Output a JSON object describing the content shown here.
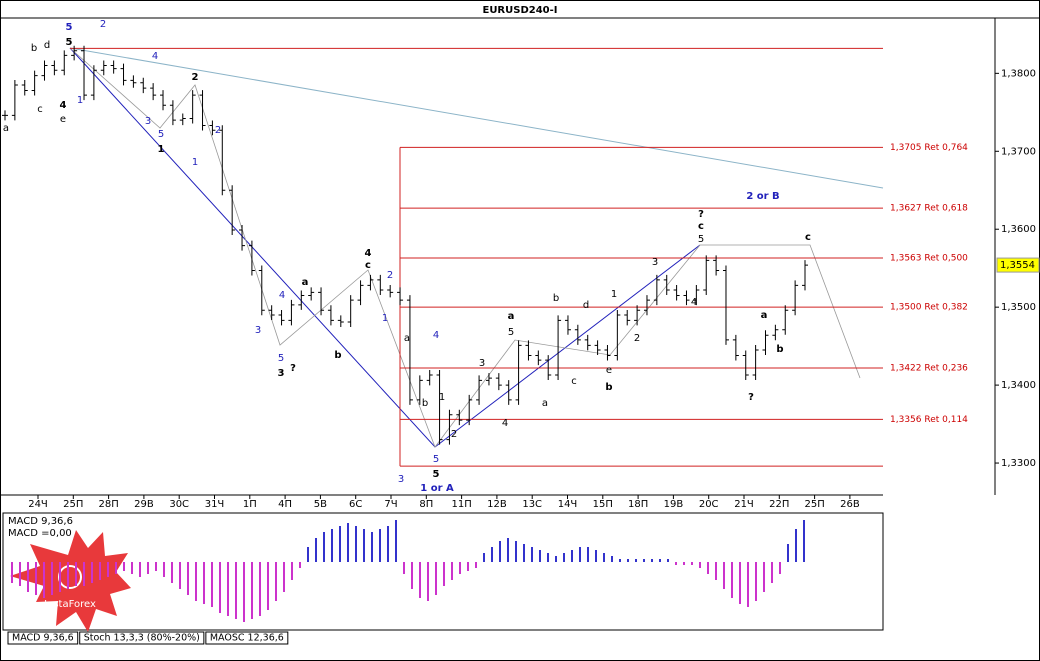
{
  "chart_data": {
    "type": "ohlc",
    "title": "EURUSD240-I",
    "ylim": [
      1.3259,
      1.3871
    ],
    "yticks": [
      {
        "value": 1.38,
        "label": "1,3800"
      },
      {
        "value": 1.37,
        "label": "1,3700"
      },
      {
        "value": 1.36,
        "label": "1,3600"
      },
      {
        "value": 1.35,
        "label": "1,3500"
      },
      {
        "value": 1.34,
        "label": "1,3400"
      },
      {
        "value": 1.33,
        "label": "1,3300"
      }
    ],
    "current_price": {
      "value": 1.3554,
      "label": "1,3554"
    },
    "levels": [
      {
        "value": 1.3705,
        "label": "1,3705 Ret 0,764"
      },
      {
        "value": 1.3627,
        "label": "1,3627 Ret 0,618"
      },
      {
        "value": 1.3563,
        "label": "1,3563 Ret 0,500"
      },
      {
        "value": 1.35,
        "label": "1,3500 Ret 0,382"
      },
      {
        "value": 1.3422,
        "label": "1,3422 Ret 0,236"
      },
      {
        "value": 1.3356,
        "label": "1,3356 Ret 0,114"
      }
    ],
    "range_lines": [
      1.3832,
      1.3296
    ],
    "color": "#000000",
    "close": [
      1.3746,
      1.3785,
      1.3778,
      1.3797,
      1.381,
      1.3804,
      1.3823,
      1.3829,
      1.3772,
      1.3804,
      1.381,
      1.3806,
      1.3791,
      1.3788,
      1.3781,
      1.3772,
      1.3759,
      1.374,
      1.3742,
      1.3772,
      1.3733,
      1.3727,
      1.365,
      1.3599,
      1.3579,
      1.3547,
      1.3496,
      1.349,
      1.3483,
      1.3503,
      1.3515,
      1.3519,
      1.3496,
      1.3483,
      1.3481,
      1.3509,
      1.3528,
      1.3535,
      1.3522,
      1.3519,
      1.3509,
      1.3381,
      1.3406,
      1.3413,
      1.333,
      1.3362,
      1.3355,
      1.3381,
      1.3406,
      1.3409,
      1.34,
      1.3381,
      1.3451,
      1.3438,
      1.3432,
      1.3413,
      1.3483,
      1.3471,
      1.3458,
      1.3451,
      1.3445,
      1.3438,
      1.349,
      1.3483,
      1.3496,
      1.3509,
      1.3535,
      1.3522,
      1.3515,
      1.3509,
      1.3522,
      1.356,
      1.3547,
      1.3458,
      1.3438,
      1.3413,
      1.3445,
      1.3464,
      1.3471,
      1.3496,
      1.3528,
      1.3554
    ],
    "dates": [
      "24Ч",
      "25П",
      "28П",
      "29В",
      "30С",
      "31Ч",
      "1П",
      "4П",
      "5В",
      "6С",
      "7Ч",
      "8П",
      "11П",
      "12В",
      "13С",
      "14Ч",
      "15П",
      "18П",
      "19В",
      "20С",
      "21Ч",
      "22П",
      "25П",
      "26В"
    ],
    "wave_labels": [
      "5",
      "b",
      "d",
      "5",
      "c",
      "e",
      "4",
      "1",
      "a",
      "2",
      "4",
      "2",
      "3",
      "5",
      "1",
      "2",
      "1",
      "4",
      "c",
      "2",
      "a",
      "4",
      "3",
      "5",
      "3",
      "?",
      "b",
      "1",
      "a",
      "4",
      "1",
      "b",
      "2",
      "5",
      "3",
      "5",
      "1 or A",
      "3",
      "4",
      "a",
      "5",
      "a",
      "b",
      "c",
      "d",
      "e",
      "b",
      "1",
      "2",
      "3",
      "4",
      "?",
      "c",
      "5",
      "2 or B",
      "c",
      "a",
      "b",
      "?"
    ],
    "macd": {
      "title": "MACD 9,36,6",
      "value_text": "MACD =0,00",
      "pos_color": "#3333cc",
      "neg_color": "#cc33cc",
      "values": [
        -0.0007,
        -0.0008,
        -0.001,
        -0.0011,
        -0.0012,
        -0.0011,
        -0.001,
        -0.0009,
        -0.0008,
        -0.0008,
        -0.0007,
        -0.0006,
        -0.0005,
        -0.0004,
        -0.0003,
        -0.0004,
        -0.0005,
        -0.0004,
        -0.0003,
        -0.0005,
        -0.0007,
        -0.0009,
        -0.0011,
        -0.0013,
        -0.0014,
        -0.0015,
        -0.0017,
        -0.0018,
        -0.0019,
        -0.002,
        -0.0019,
        -0.0018,
        -0.0016,
        -0.0013,
        -0.001,
        -0.0006,
        -0.0002,
        0.0005,
        0.0008,
        0.001,
        0.0011,
        0.0012,
        0.0013,
        0.0012,
        0.0011,
        0.001,
        0.0011,
        0.0012,
        0.0014,
        -0.0004,
        -0.0009,
        -0.0012,
        -0.0013,
        -0.0011,
        -0.0008,
        -0.0006,
        -0.0004,
        -0.0003,
        -0.0002,
        0.0003,
        0.0005,
        0.0007,
        0.0008,
        0.0007,
        0.0006,
        0.0005,
        0.0004,
        0.0003,
        0.0002,
        0.0003,
        0.0004,
        0.0005,
        0.0005,
        0.0004,
        0.0003,
        0.0002,
        0.0001,
        0.0001,
        0.0001,
        0.0001,
        0.0001,
        0.0001,
        0.0001,
        -0.0001,
        -0.0001,
        -0.0001,
        -0.0002,
        -0.0004,
        -0.0006,
        -0.0009,
        -0.0012,
        -0.0014,
        -0.0015,
        -0.0013,
        -0.001,
        -0.0007,
        -0.0004,
        0.0006,
        0.0011,
        0.0014
      ]
    },
    "tabs": [
      "MACD 9,36,6",
      "Stoch 13,3,3 (80%-20%)",
      "MAOSC 12,36,6"
    ],
    "logo": "InstaForex"
  }
}
